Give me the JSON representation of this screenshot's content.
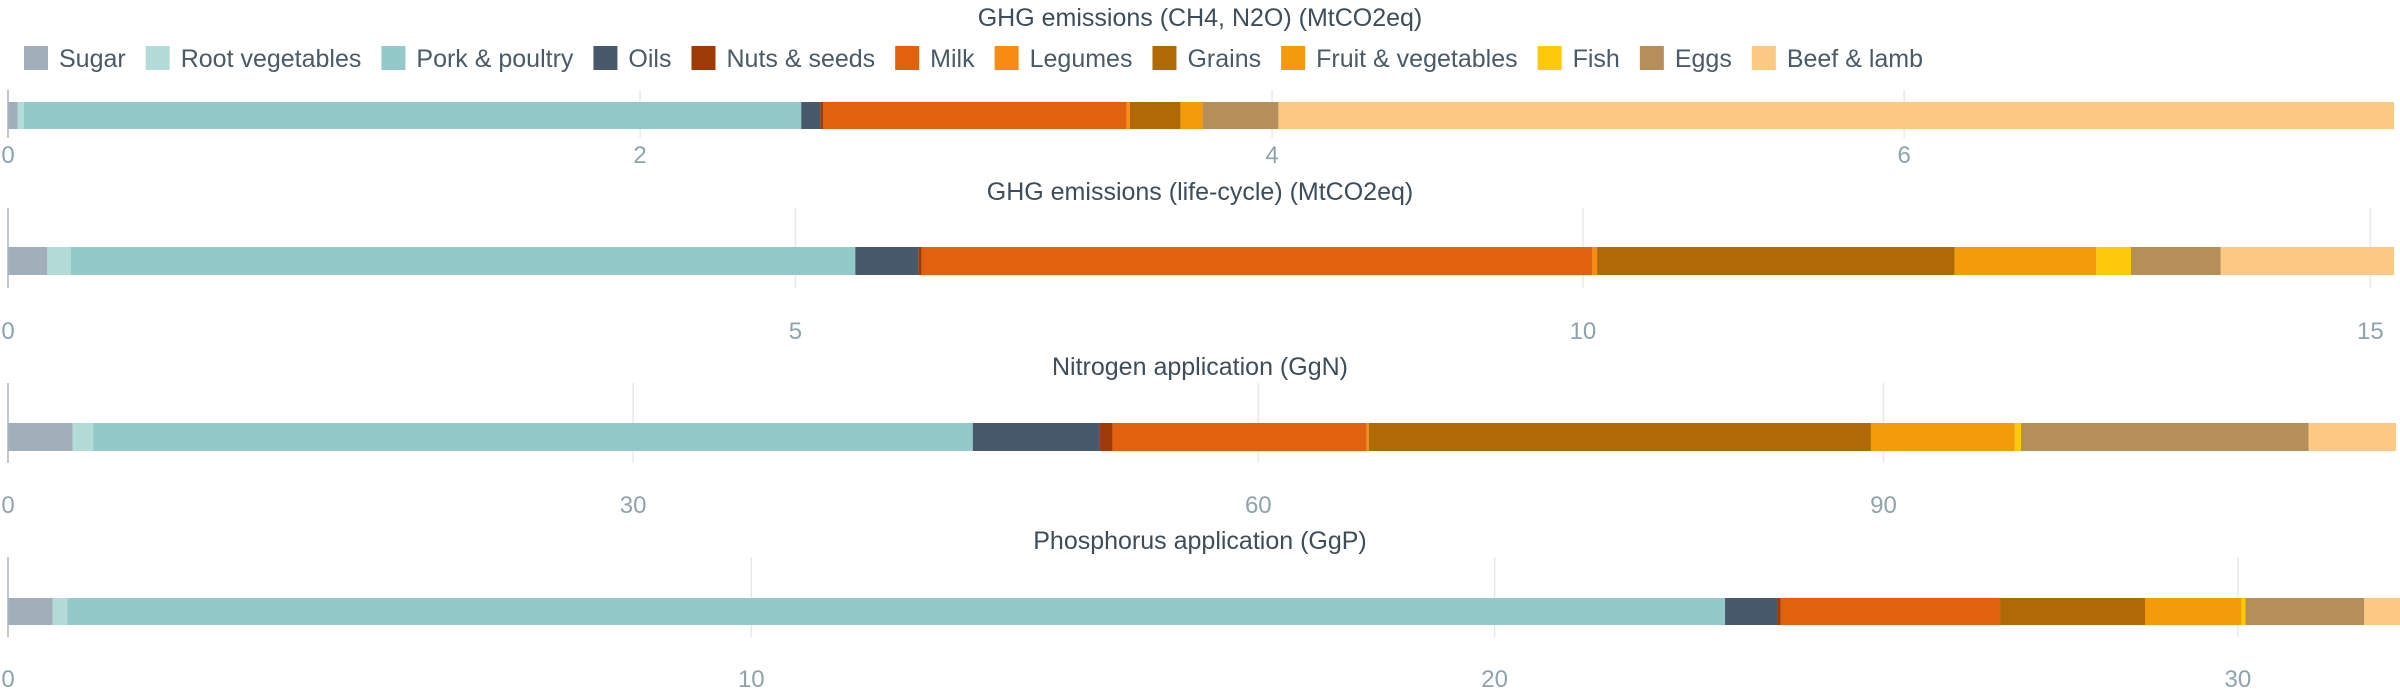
{
  "legend": [
    {
      "name": "Sugar",
      "color": "#a2afbb"
    },
    {
      "name": "Root vegetables",
      "color": "#b3dbd7"
    },
    {
      "name": "Pork & poultry",
      "color": "#93c9c8"
    },
    {
      "name": "Oils",
      "color": "#47596b"
    },
    {
      "name": "Nuts & seeds",
      "color": "#9e3a06"
    },
    {
      "name": "Milk",
      "color": "#e0610e"
    },
    {
      "name": "Legumes",
      "color": "#f98a12"
    },
    {
      "name": "Grains",
      "color": "#b06a05"
    },
    {
      "name": "Fruit & vegetables",
      "color": "#f49b0c"
    },
    {
      "name": "Fish",
      "color": "#fdc90a"
    },
    {
      "name": "Eggs",
      "color": "#b58e5a"
    },
    {
      "name": "Beef & lamb",
      "color": "#fcc982"
    }
  ],
  "chart_data": [
    {
      "type": "bar",
      "orientation": "horizontal",
      "stacked": true,
      "title": "GHG emissions (CH4, N2O) (MtCO2eq)",
      "xlim": [
        0,
        7.55
      ],
      "xticks": [
        0,
        2,
        4,
        6
      ],
      "grid": true,
      "legend_position": "top-left",
      "series": [
        {
          "name": "Sugar",
          "values": [
            0.03
          ]
        },
        {
          "name": "Root vegetables",
          "values": [
            0.02
          ]
        },
        {
          "name": "Pork & poultry",
          "values": [
            2.46
          ]
        },
        {
          "name": "Oils",
          "values": [
            0.06
          ]
        },
        {
          "name": "Nuts & seeds",
          "values": [
            0.01
          ]
        },
        {
          "name": "Milk",
          "values": [
            0.96
          ]
        },
        {
          "name": "Legumes",
          "values": [
            0.01
          ]
        },
        {
          "name": "Grains",
          "values": [
            0.16
          ]
        },
        {
          "name": "Fruit & vegetables",
          "values": [
            0.07
          ]
        },
        {
          "name": "Fish",
          "values": [
            0.0
          ]
        },
        {
          "name": "Eggs",
          "values": [
            0.24
          ]
        },
        {
          "name": "Beef & lamb",
          "values": [
            3.53
          ]
        }
      ]
    },
    {
      "type": "bar",
      "orientation": "horizontal",
      "stacked": true,
      "title": "GHG emissions (life-cycle) (MtCO2eq)",
      "xlim": [
        0,
        15.15
      ],
      "xticks": [
        0,
        5,
        10,
        15
      ],
      "grid": true,
      "series": [
        {
          "name": "Sugar",
          "values": [
            0.25
          ]
        },
        {
          "name": "Root vegetables",
          "values": [
            0.15
          ]
        },
        {
          "name": "Pork & poultry",
          "values": [
            4.98
          ]
        },
        {
          "name": "Oils",
          "values": [
            0.4
          ]
        },
        {
          "name": "Nuts & seeds",
          "values": [
            0.02
          ]
        },
        {
          "name": "Milk",
          "values": [
            4.26
          ]
        },
        {
          "name": "Legumes",
          "values": [
            0.03
          ]
        },
        {
          "name": "Grains",
          "values": [
            2.27
          ]
        },
        {
          "name": "Fruit & vegetables",
          "values": [
            0.9
          ]
        },
        {
          "name": "Fish",
          "values": [
            0.22
          ]
        },
        {
          "name": "Eggs",
          "values": [
            0.57
          ]
        },
        {
          "name": "Beef & lamb",
          "values": [
            1.1
          ]
        }
      ]
    },
    {
      "type": "bar",
      "orientation": "horizontal",
      "stacked": true,
      "title": "Nitrogen application (GgN)",
      "xlim": [
        0,
        114.5
      ],
      "xticks": [
        0,
        30,
        60,
        90
      ],
      "grid": true,
      "series": [
        {
          "name": "Sugar",
          "values": [
            3.1
          ]
        },
        {
          "name": "Root vegetables",
          "values": [
            1.0
          ]
        },
        {
          "name": "Pork & poultry",
          "values": [
            42.2
          ]
        },
        {
          "name": "Oils",
          "values": [
            6.1
          ]
        },
        {
          "name": "Nuts & seeds",
          "values": [
            0.6
          ]
        },
        {
          "name": "Milk",
          "values": [
            12.2
          ]
        },
        {
          "name": "Legumes",
          "values": [
            0.1
          ]
        },
        {
          "name": "Grains",
          "values": [
            24.1
          ]
        },
        {
          "name": "Fruit & vegetables",
          "values": [
            6.9
          ]
        },
        {
          "name": "Fish",
          "values": [
            0.3
          ]
        },
        {
          "name": "Eggs",
          "values": [
            13.8
          ]
        },
        {
          "name": "Beef & lamb",
          "values": [
            4.2
          ]
        }
      ]
    },
    {
      "type": "bar",
      "orientation": "horizontal",
      "stacked": true,
      "title": "Phosphorus application (GgP)",
      "xlim": [
        0,
        32.1
      ],
      "xticks": [
        0,
        10,
        20,
        30
      ],
      "grid": true,
      "series": [
        {
          "name": "Sugar",
          "values": [
            0.6
          ]
        },
        {
          "name": "Root vegetables",
          "values": [
            0.2
          ]
        },
        {
          "name": "Pork & poultry",
          "values": [
            22.3
          ]
        },
        {
          "name": "Oils",
          "values": [
            0.7
          ]
        },
        {
          "name": "Nuts & seeds",
          "values": [
            0.05
          ]
        },
        {
          "name": "Milk",
          "values": [
            2.95
          ]
        },
        {
          "name": "Legumes",
          "values": [
            0.0
          ]
        },
        {
          "name": "Grains",
          "values": [
            1.95
          ]
        },
        {
          "name": "Fruit & vegetables",
          "values": [
            1.3
          ]
        },
        {
          "name": "Fish",
          "values": [
            0.05
          ]
        },
        {
          "name": "Eggs",
          "values": [
            1.6
          ]
        },
        {
          "name": "Beef & lamb",
          "values": [
            0.5
          ]
        }
      ]
    }
  ]
}
